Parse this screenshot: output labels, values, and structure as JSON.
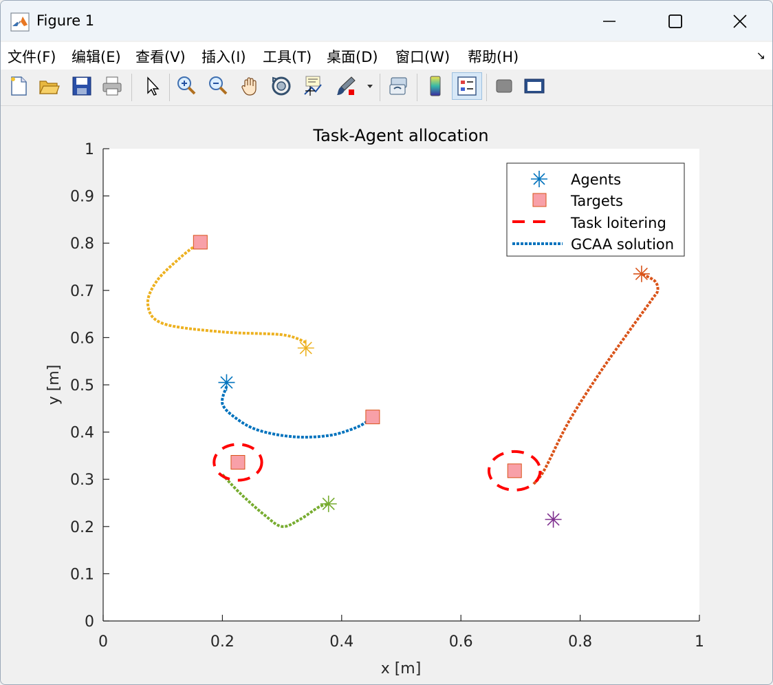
{
  "window": {
    "title": "Figure 1",
    "icons": {
      "app": "matlab-logo-icon",
      "minimize": "minimize-icon",
      "maximize": "maximize-icon",
      "close": "close-icon"
    }
  },
  "menubar": {
    "items": [
      {
        "label": "文件(F)",
        "key": "F"
      },
      {
        "label": "编辑(E)",
        "key": "E"
      },
      {
        "label": "查看(V)",
        "key": "V"
      },
      {
        "label": "插入(I)",
        "key": "I"
      },
      {
        "label": "工具(T)",
        "key": "T"
      },
      {
        "label": "桌面(D)",
        "key": "D"
      },
      {
        "label": "窗口(W)",
        "key": "W"
      },
      {
        "label": "帮助(H)",
        "key": "H"
      }
    ],
    "arrow": "↘"
  },
  "toolbar": {
    "buttons": [
      "new-figure-icon",
      "open-file-icon",
      "save-icon",
      "print-icon",
      "pointer-icon",
      "zoom-in-icon",
      "zoom-out-icon",
      "pan-hand-icon",
      "rotate-3d-icon",
      "data-cursor-icon",
      "brush-icon",
      "link-plot-icon",
      "colorbar-icon",
      "legend-icon",
      "hide-plot-tools-icon",
      "show-plot-tools-icon"
    ],
    "active": "legend-icon"
  },
  "chart_data": {
    "type": "scatter",
    "title": "Task-Agent allocation",
    "xlabel": "x [m]",
    "ylabel": "y [m]",
    "xlim": [
      0,
      1
    ],
    "ylim": [
      0,
      1
    ],
    "xticks": [
      "0",
      "0.2",
      "0.4",
      "0.6",
      "0.8",
      "1"
    ],
    "yticks": [
      "0",
      "0.1",
      "0.2",
      "0.3",
      "0.4",
      "0.5",
      "0.6",
      "0.7",
      "0.8",
      "0.9",
      "1"
    ],
    "grid": false,
    "legend": {
      "location": "top-right",
      "entries": [
        "Agents",
        "Targets",
        "Task loitering",
        "GCAA solution"
      ]
    },
    "agents": [
      {
        "x": 0.207,
        "y": 0.505,
        "color": "#0072BD"
      },
      {
        "x": 0.903,
        "y": 0.735,
        "color": "#D95319"
      },
      {
        "x": 0.34,
        "y": 0.578,
        "color": "#EDB120"
      },
      {
        "x": 0.755,
        "y": 0.215,
        "color": "#7E2F8E"
      },
      {
        "x": 0.378,
        "y": 0.248,
        "color": "#77AC30"
      }
    ],
    "targets": [
      {
        "x": 0.163,
        "y": 0.802
      },
      {
        "x": 0.452,
        "y": 0.432
      },
      {
        "x": 0.226,
        "y": 0.336
      },
      {
        "x": 0.69,
        "y": 0.318
      }
    ],
    "target_color": "#F8A0A8",
    "loitering": [
      {
        "x": 0.226,
        "y": 0.336,
        "r": 0.04
      },
      {
        "x": 0.69,
        "y": 0.318,
        "r": 0.043
      }
    ],
    "loitering_color": "#FF0000",
    "paths": [
      {
        "color": "#0072BD",
        "points": [
          [
            0.207,
            0.497
          ],
          [
            0.2,
            0.46
          ],
          [
            0.222,
            0.43
          ],
          [
            0.26,
            0.404
          ],
          [
            0.32,
            0.39
          ],
          [
            0.38,
            0.393
          ],
          [
            0.425,
            0.41
          ],
          [
            0.448,
            0.427
          ]
        ]
      },
      {
        "color": "#D95319",
        "points": [
          [
            0.722,
            0.29
          ],
          [
            0.74,
            0.32
          ],
          [
            0.78,
            0.42
          ],
          [
            0.83,
            0.52
          ],
          [
            0.88,
            0.61
          ],
          [
            0.92,
            0.68
          ],
          [
            0.93,
            0.7
          ],
          [
            0.925,
            0.72
          ],
          [
            0.903,
            0.735
          ]
        ]
      },
      {
        "color": "#EDB120",
        "points": [
          [
            0.34,
            0.59
          ],
          [
            0.3,
            0.606
          ],
          [
            0.2,
            0.612
          ],
          [
            0.1,
            0.63
          ],
          [
            0.075,
            0.67
          ],
          [
            0.09,
            0.72
          ],
          [
            0.13,
            0.77
          ],
          [
            0.158,
            0.798
          ]
        ]
      },
      {
        "color": "#77AC30",
        "points": [
          [
            0.2,
            0.31
          ],
          [
            0.23,
            0.27
          ],
          [
            0.27,
            0.225
          ],
          [
            0.3,
            0.2
          ],
          [
            0.33,
            0.215
          ],
          [
            0.36,
            0.24
          ],
          [
            0.376,
            0.248
          ]
        ]
      }
    ]
  }
}
